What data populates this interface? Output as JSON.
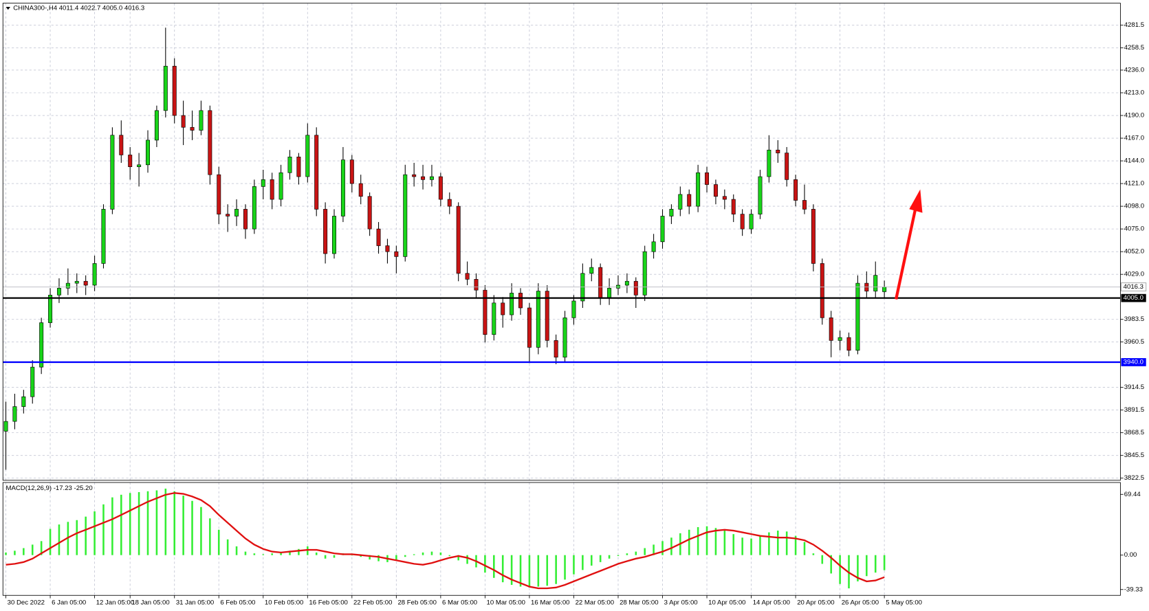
{
  "chart_data": [
    {
      "type": "candlestick",
      "title": "CHINA300-,H4  4011.4 4022.7 4005.0 4016.3",
      "ylim": [
        3820.3,
        4303.8
      ],
      "yticks": [
        4281.5,
        4258.5,
        {
          "value": 4236,
          "label": "4236.0"
        },
        {
          "value": 4213,
          "label": "4213.0"
        },
        {
          "value": 4190,
          "label": "4190.0"
        },
        {
          "value": 4167,
          "label": "4167.0"
        },
        {
          "value": 4144,
          "label": "4144.0"
        },
        {
          "value": 4121,
          "label": "4121.0"
        },
        {
          "value": 4098,
          "label": "4098.0"
        },
        {
          "value": 4075,
          "label": "4075.0"
        },
        {
          "value": 4052,
          "label": "4052.0"
        },
        {
          "value": 4029,
          "label": "4029.0"
        },
        3983.5,
        3960.5,
        3914.5,
        3891.5,
        3868.5,
        3845.5,
        3822.5
      ],
      "grid": true,
      "up_color": "#19d419",
      "down_color": "#c81414",
      "levels": [
        {
          "value": 4005,
          "label": "4005.0",
          "color": "#000000"
        },
        {
          "value": 3940,
          "label": "3940.0",
          "color": "#0000ff"
        }
      ],
      "last_price": 4016.3,
      "ohlc": [
        [
          3870,
          3900,
          3831,
          3880
        ],
        [
          3880,
          3908,
          3872,
          3895
        ],
        [
          3895,
          3912,
          3888,
          3905
        ],
        [
          3905,
          3942,
          3898,
          3935
        ],
        [
          3935,
          3985,
          3928,
          3980
        ],
        [
          3980,
          4015,
          3975,
          4008
        ],
        [
          4008,
          4025,
          4000,
          4015
        ],
        [
          4015,
          4035,
          4008,
          4020
        ],
        [
          4020,
          4030,
          4010,
          4022
        ],
        [
          4022,
          4028,
          4008,
          4018
        ],
        [
          4018,
          4048,
          4012,
          4040
        ],
        [
          4040,
          4100,
          4035,
          4095
        ],
        [
          4095,
          4178,
          4090,
          4170
        ],
        [
          4170,
          4185,
          4142,
          4150
        ],
        [
          4150,
          4158,
          4125,
          4138
        ],
        [
          4138,
          4152,
          4118,
          4140
        ],
        [
          4140,
          4175,
          4132,
          4165
        ],
        [
          4165,
          4200,
          4158,
          4195
        ],
        [
          4195,
          4279,
          4188,
          4240
        ],
        [
          4240,
          4248,
          4182,
          4190
        ],
        [
          4190,
          4205,
          4160,
          4178
        ],
        [
          4178,
          4195,
          4165,
          4175
        ],
        [
          4175,
          4205,
          4170,
          4195
        ],
        [
          4195,
          4200,
          4120,
          4130
        ],
        [
          4130,
          4138,
          4080,
          4090
        ],
        [
          4090,
          4100,
          4072,
          4088
        ],
        [
          4088,
          4105,
          4078,
          4095
        ],
        [
          4095,
          4100,
          4065,
          4075
        ],
        [
          4075,
          4125,
          4070,
          4118
        ],
        [
          4118,
          4135,
          4105,
          4125
        ],
        [
          4125,
          4132,
          4095,
          4105
        ],
        [
          4105,
          4140,
          4098,
          4132
        ],
        [
          4132,
          4155,
          4125,
          4148
        ],
        [
          4148,
          4152,
          4120,
          4128
        ],
        [
          4128,
          4182,
          4122,
          4170
        ],
        [
          4170,
          4178,
          4088,
          4095
        ],
        [
          4095,
          4102,
          4040,
          4050
        ],
        [
          4050,
          4095,
          4045,
          4088
        ],
        [
          4088,
          4158,
          4082,
          4145
        ],
        [
          4145,
          4150,
          4112,
          4121
        ],
        [
          4121,
          4130,
          4100,
          4108
        ],
        [
          4108,
          4112,
          4068,
          4075
        ],
        [
          4075,
          4082,
          4050,
          4058
        ],
        [
          4058,
          4065,
          4040,
          4052
        ],
        [
          4052,
          4058,
          4030,
          4047
        ],
        [
          4047,
          4140,
          4042,
          4130
        ],
        [
          4130,
          4142,
          4118,
          4128
        ],
        [
          4128,
          4140,
          4115,
          4125
        ],
        [
          4125,
          4140,
          4118,
          4128
        ],
        [
          4128,
          4132,
          4098,
          4105
        ],
        [
          4105,
          4112,
          4090,
          4098
        ],
        [
          4098,
          4102,
          4022,
          4030
        ],
        [
          4030,
          4042,
          4018,
          4024
        ],
        [
          4024,
          4030,
          4005,
          4013
        ],
        [
          4013,
          4018,
          3960,
          3968
        ],
        [
          3968,
          4008,
          3962,
          4000
        ],
        [
          4000,
          4006,
          3975,
          3988
        ],
        [
          3988,
          4020,
          3982,
          4010
        ],
        [
          4010,
          4015,
          3988,
          3995
        ],
        [
          3995,
          4000,
          3939,
          3955
        ],
        [
          3955,
          4020,
          3948,
          4012
        ],
        [
          4012,
          4018,
          3955,
          3962
        ],
        [
          3962,
          3968,
          3938,
          3945
        ],
        [
          3945,
          3992,
          3940,
          3985
        ],
        [
          3985,
          4008,
          3978,
          4002
        ],
        [
          4002,
          4040,
          3995,
          4030
        ],
        [
          4030,
          4045,
          4022,
          4036
        ],
        [
          4036,
          4040,
          3998,
          4005
        ],
        [
          4005,
          4025,
          3998,
          4015
        ],
        [
          4015,
          4028,
          4008,
          4018
        ],
        [
          4018,
          4030,
          4010,
          4022
        ],
        [
          4022,
          4026,
          3995,
          4008
        ],
        [
          4008,
          4058,
          4002,
          4052
        ],
        [
          4052,
          4070,
          4045,
          4062
        ],
        [
          4062,
          4095,
          4055,
          4088
        ],
        [
          4088,
          4100,
          4080,
          4095
        ],
        [
          4095,
          4118,
          4088,
          4110
        ],
        [
          4110,
          4115,
          4090,
          4098
        ],
        [
          4098,
          4140,
          4092,
          4132
        ],
        [
          4132,
          4138,
          4112,
          4120
        ],
        [
          4120,
          4125,
          4100,
          4108
        ],
        [
          4108,
          4115,
          4095,
          4105
        ],
        [
          4105,
          4110,
          4082,
          4090
        ],
        [
          4090,
          4095,
          4068,
          4075
        ],
        [
          4075,
          4095,
          4070,
          4090
        ],
        [
          4090,
          4135,
          4085,
          4128
        ],
        [
          4128,
          4170,
          4122,
          4155
        ],
        [
          4155,
          4165,
          4142,
          4152
        ],
        [
          4152,
          4158,
          4118,
          4125
        ],
        [
          4125,
          4130,
          4098,
          4104
        ],
        [
          4104,
          4120,
          4090,
          4095
        ],
        [
          4095,
          4100,
          4032,
          4040
        ],
        [
          4040,
          4045,
          3978,
          3985
        ],
        [
          3985,
          3992,
          3945,
          3962
        ],
        [
          3962,
          3972,
          3952,
          3965
        ],
        [
          3965,
          3970,
          3946,
          3952
        ],
        [
          3952,
          4028,
          3948,
          4020
        ],
        [
          4020,
          4032,
          4005,
          4012
        ],
        [
          4012,
          4042,
          4005,
          4028
        ],
        [
          4011.4,
          4022.7,
          4005.0,
          4016.3
        ]
      ]
    },
    {
      "type": "macd",
      "title": "MACD(12,26,9) -17.23 -25.20",
      "ylim": [
        -46,
        83
      ],
      "yticks": [
        69.44,
        {
          "value": 0,
          "label": "0.00"
        },
        -39.33
      ],
      "grid": false,
      "hist_color": "#33ee33",
      "signal_color": "#e01010",
      "xlim": [
        -0.33,
        125.6
      ],
      "xticks": [
        {
          "value": 0,
          "label": "30 Dec 2022"
        },
        {
          "value": 5,
          "label": "6 Jan 05:00"
        },
        {
          "value": 10,
          "label": "12 Jan 05:00"
        },
        {
          "value": 14,
          "label": "18 Jan 05:00"
        },
        {
          "value": 19,
          "label": "31 Jan 05:00"
        },
        {
          "value": 24,
          "label": "6 Feb 05:00"
        },
        {
          "value": 29,
          "label": "10 Feb 05:00"
        },
        {
          "value": 34,
          "label": "16 Feb 05:00"
        },
        {
          "value": 39,
          "label": "22 Feb 05:00"
        },
        {
          "value": 44,
          "label": "28 Feb 05:00"
        },
        {
          "value": 49,
          "label": "6 Mar 05:00"
        },
        {
          "value": 54,
          "label": "10 Mar 05:00"
        },
        {
          "value": 59,
          "label": "16 Mar 05:00"
        },
        {
          "value": 64,
          "label": "22 Mar 05:00"
        },
        {
          "value": 69,
          "label": "28 Mar 05:00"
        },
        {
          "value": 74,
          "label": "3 Apr 05:00"
        },
        {
          "value": 79,
          "label": "10 Apr 05:00"
        },
        {
          "value": 84,
          "label": "14 Apr 05:00"
        },
        {
          "value": 89,
          "label": "20 Apr 05:00"
        },
        {
          "value": 94,
          "label": "26 Apr 05:00"
        },
        {
          "value": 99,
          "label": "5 May 05:00"
        }
      ],
      "histogram": [
        3,
        5,
        8,
        12,
        16,
        30,
        35,
        38,
        40,
        44,
        50,
        58,
        66,
        69,
        71,
        72,
        73,
        74,
        76,
        73,
        68,
        62,
        55,
        42,
        29,
        18,
        10,
        4,
        2,
        1,
        2,
        3,
        5,
        7,
        10,
        3,
        -4,
        -3,
        2,
        0,
        -2,
        -5,
        -7,
        -8,
        -6,
        -2,
        1,
        3,
        4,
        3,
        -1,
        -6,
        -10,
        -14,
        -20,
        -26,
        -31,
        -34,
        -36,
        -37,
        -36,
        -35,
        -33,
        -28,
        -22,
        -17,
        -12,
        -8,
        -4,
        -1,
        2,
        4,
        8,
        12,
        16,
        20,
        25,
        29,
        32,
        33,
        31,
        28,
        24,
        20,
        19,
        22,
        26,
        28,
        27,
        22,
        15,
        2,
        -10,
        -21,
        -33,
        -38,
        -30,
        -24,
        -20,
        -17.23
      ],
      "signal": [
        -11,
        -10,
        -8,
        -4,
        2,
        8,
        14,
        20,
        25,
        29,
        33,
        37,
        41,
        46,
        51,
        56,
        61,
        65,
        69,
        71,
        70,
        67,
        63,
        56,
        46,
        37,
        28,
        19,
        12,
        7,
        4,
        3,
        4,
        5,
        6,
        6,
        4,
        2,
        1,
        1,
        0,
        -1,
        -2,
        -4,
        -6,
        -8,
        -10,
        -11,
        -9,
        -6,
        -3,
        -1,
        -3,
        -7,
        -12,
        -17,
        -23,
        -28,
        -32,
        -36,
        -38,
        -38,
        -37,
        -34,
        -30,
        -26,
        -22,
        -18,
        -14,
        -10,
        -7,
        -4,
        -2,
        1,
        4,
        8,
        13,
        18,
        22,
        26,
        28,
        29,
        28,
        26,
        24,
        22,
        21,
        20,
        20,
        19,
        17,
        12,
        5,
        -3,
        -12,
        -20,
        -26,
        -30,
        -29,
        -25.2
      ]
    }
  ]
}
